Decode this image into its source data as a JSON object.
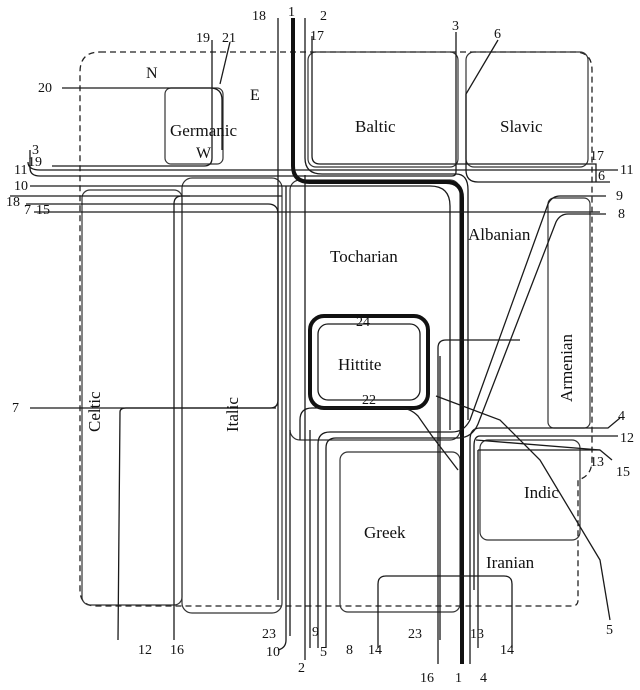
{
  "groups": {
    "germanic": "Germanic",
    "baltic": "Baltic",
    "slavic": "Slavic",
    "albanian": "Albanian",
    "tocharian": "Tocharian",
    "hittite": "Hittite",
    "armenian": "Armenian",
    "celtic": "Celtic",
    "italic": "Italic",
    "greek": "Greek",
    "indic": "Indic",
    "iranian": "Iranian"
  },
  "compass": {
    "north": "N",
    "east": "E",
    "west": "W"
  },
  "isoglosses": {
    "n1": "1",
    "n2": "2",
    "n3": "3",
    "n4": "4",
    "n5": "5",
    "n6": "6",
    "n7": "7",
    "n8": "8",
    "n9": "9",
    "n10": "10",
    "n11": "11",
    "n12": "12",
    "n13": "13",
    "n14": "14",
    "n15": "15",
    "n16": "16",
    "n17": "17",
    "n18": "18",
    "n19": "19",
    "n20": "20",
    "n21": "21",
    "n22": "22",
    "n23": "23",
    "n24": "24"
  }
}
